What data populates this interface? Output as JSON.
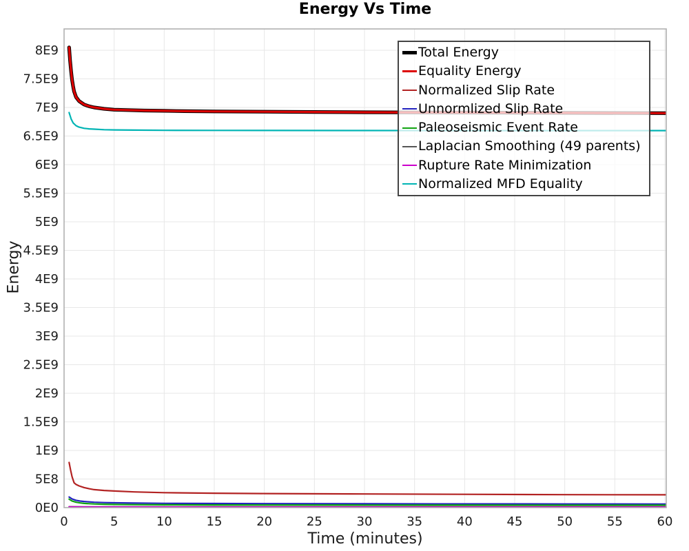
{
  "title": "Energy Vs Time",
  "colors": {
    "grid": "#e7e7e7",
    "plot_border": "#b0b0b0",
    "tick_text": "#1c1c1c",
    "legend_border": "#444444"
  },
  "chart_data": {
    "type": "line",
    "title": "Energy Vs Time",
    "xlabel": "Time (minutes)",
    "ylabel": "Energy",
    "xlim": [
      0,
      60.3
    ],
    "ylim": [
      0,
      8373000000.0
    ],
    "grid": true,
    "legend_position": "top-right",
    "x_ticks": [
      0,
      5,
      10,
      15,
      20,
      25,
      30,
      35,
      40,
      45,
      50,
      55,
      60
    ],
    "y_ticks": [
      {
        "value": 0,
        "label": "0E0"
      },
      {
        "value": 500000000.0,
        "label": "5E8"
      },
      {
        "value": 1000000000.0,
        "label": "1E9"
      },
      {
        "value": 1500000000.0,
        "label": "1.5E9"
      },
      {
        "value": 2000000000.0,
        "label": "2E9"
      },
      {
        "value": 2500000000.0,
        "label": "2.5E9"
      },
      {
        "value": 3000000000.0,
        "label": "3E9"
      },
      {
        "value": 3500000000.0,
        "label": "3.5E9"
      },
      {
        "value": 4000000000.0,
        "label": "4E9"
      },
      {
        "value": 4500000000.0,
        "label": "4.5E9"
      },
      {
        "value": 5000000000.0,
        "label": "5E9"
      },
      {
        "value": 5500000000.0,
        "label": "5.5E9"
      },
      {
        "value": 6000000000.0,
        "label": "6E9"
      },
      {
        "value": 6500000000.0,
        "label": "6.5E9"
      },
      {
        "value": 7000000000.0,
        "label": "7E9"
      },
      {
        "value": 7500000000.0,
        "label": "7.5E9"
      },
      {
        "value": 8000000000.0,
        "label": "8E9"
      }
    ],
    "series": [
      {
        "name": "Total Energy",
        "color": "#000000",
        "width": 5.2,
        "points": [
          [
            0.5,
            8050000000.0
          ],
          [
            0.6,
            7820000000.0
          ],
          [
            0.7,
            7630000000.0
          ],
          [
            0.8,
            7480000000.0
          ],
          [
            0.9,
            7370000000.0
          ],
          [
            1.0,
            7280000000.0
          ],
          [
            1.2,
            7180000000.0
          ],
          [
            1.5,
            7110000000.0
          ],
          [
            2,
            7050000000.0
          ],
          [
            2.5,
            7020000000.0
          ],
          [
            3,
            7000000000.0
          ],
          [
            4,
            6975000000.0
          ],
          [
            5,
            6960000000.0
          ],
          [
            6,
            6955000000.0
          ],
          [
            8,
            6945000000.0
          ],
          [
            10,
            6940000000.0
          ],
          [
            12,
            6935000000.0
          ],
          [
            15,
            6930000000.0
          ],
          [
            20,
            6925000000.0
          ],
          [
            25,
            6920000000.0
          ],
          [
            30,
            6915000000.0
          ],
          [
            40,
            6910000000.0
          ],
          [
            50,
            6905000000.0
          ],
          [
            60.3,
            6900000000.0
          ]
        ]
      },
      {
        "name": "Equality Energy",
        "color": "#dd0000",
        "width": 3.2,
        "points": [
          [
            0.5,
            8050000000.0
          ],
          [
            0.6,
            7820000000.0
          ],
          [
            0.7,
            7630000000.0
          ],
          [
            0.8,
            7480000000.0
          ],
          [
            0.9,
            7370000000.0
          ],
          [
            1.0,
            7280000000.0
          ],
          [
            1.2,
            7180000000.0
          ],
          [
            1.5,
            7110000000.0
          ],
          [
            2,
            7050000000.0
          ],
          [
            2.5,
            7020000000.0
          ],
          [
            3,
            7000000000.0
          ],
          [
            4,
            6975000000.0
          ],
          [
            5,
            6960000000.0
          ],
          [
            6,
            6955000000.0
          ],
          [
            8,
            6945000000.0
          ],
          [
            10,
            6940000000.0
          ],
          [
            12,
            6935000000.0
          ],
          [
            15,
            6930000000.0
          ],
          [
            20,
            6925000000.0
          ],
          [
            25,
            6920000000.0
          ],
          [
            30,
            6915000000.0
          ],
          [
            40,
            6910000000.0
          ],
          [
            50,
            6905000000.0
          ],
          [
            60.3,
            6900000000.0
          ]
        ]
      },
      {
        "name": "Normalized Slip Rate",
        "color": "#b22222",
        "width": 2.2,
        "points": [
          [
            0.5,
            790000000.0
          ],
          [
            0.65,
            660000000.0
          ],
          [
            0.8,
            540000000.0
          ],
          [
            1.0,
            435000000.0
          ],
          [
            1.2,
            405000000.0
          ],
          [
            1.5,
            380000000.0
          ],
          [
            2,
            350000000.0
          ],
          [
            2.5,
            330000000.0
          ],
          [
            3,
            315000000.0
          ],
          [
            4,
            300000000.0
          ],
          [
            5,
            290000000.0
          ],
          [
            7,
            275000000.0
          ],
          [
            10,
            262000000.0
          ],
          [
            15,
            252000000.0
          ],
          [
            20,
            246000000.0
          ],
          [
            30,
            238000000.0
          ],
          [
            40,
            232000000.0
          ],
          [
            50,
            227000000.0
          ],
          [
            60.3,
            224000000.0
          ]
        ]
      },
      {
        "name": "Unnormlized Slip Rate",
        "color": "#2222bf",
        "width": 2.2,
        "points": [
          [
            0.5,
            185000000.0
          ],
          [
            0.8,
            152000000.0
          ],
          [
            1.2,
            128000000.0
          ],
          [
            1.6,
            115000000.0
          ],
          [
            2,
            107000000.0
          ],
          [
            3,
            94000000.0
          ],
          [
            4,
            88000000.0
          ],
          [
            5,
            84000000.0
          ],
          [
            7,
            79000000.0
          ],
          [
            10,
            75000000.0
          ],
          [
            15,
            72000000.0
          ],
          [
            20,
            70000000.0
          ],
          [
            30,
            67000000.0
          ],
          [
            40,
            65000000.0
          ],
          [
            50,
            64000000.0
          ],
          [
            60.3,
            63000000.0
          ]
        ]
      },
      {
        "name": "Paleoseismic Event Rate",
        "color": "#10a310",
        "width": 2.2,
        "points": [
          [
            0.5,
            148000000.0
          ],
          [
            0.8,
            116000000.0
          ],
          [
            1.2,
            94000000.0
          ],
          [
            1.6,
            82000000.0
          ],
          [
            2,
            74000000.0
          ],
          [
            3,
            64000000.0
          ],
          [
            4,
            59000000.0
          ],
          [
            5,
            56000000.0
          ],
          [
            7,
            52000000.0
          ],
          [
            10,
            49000000.0
          ],
          [
            15,
            47000000.0
          ],
          [
            20,
            46000000.0
          ],
          [
            30,
            44000000.0
          ],
          [
            40,
            43000000.0
          ],
          [
            50,
            42500000.0
          ],
          [
            60.3,
            42000000.0
          ]
        ]
      },
      {
        "name": "Laplacian Smoothing (49 parents)",
        "color": "#555555",
        "width": 2.2,
        "points": [
          [
            0.5,
            16000000.0
          ],
          [
            2,
            14000000.0
          ],
          [
            10,
            13000000.0
          ],
          [
            60.3,
            13000000.0
          ]
        ]
      },
      {
        "name": "Rupture Rate Minimization",
        "color": "#cc00cc",
        "width": 2.2,
        "points": [
          [
            0.5,
            12000000.0
          ],
          [
            2,
            10500000.0
          ],
          [
            10,
            10000000.0
          ],
          [
            60.3,
            10000000.0
          ]
        ]
      },
      {
        "name": "Normalized MFD Equality",
        "color": "#00b4b4",
        "width": 2.2,
        "points": [
          [
            0.5,
            6910000000.0
          ],
          [
            0.7,
            6800000000.0
          ],
          [
            0.9,
            6730000000.0
          ],
          [
            1.2,
            6680000000.0
          ],
          [
            1.5,
            6655000000.0
          ],
          [
            2,
            6635000000.0
          ],
          [
            2.5,
            6625000000.0
          ],
          [
            3,
            6620000000.0
          ],
          [
            4,
            6610000000.0
          ],
          [
            5,
            6607000000.0
          ],
          [
            7,
            6603000000.0
          ],
          [
            10,
            6600000000.0
          ],
          [
            15,
            6598000000.0
          ],
          [
            20,
            6597000000.0
          ],
          [
            30,
            6596000000.0
          ],
          [
            40,
            6595000000.0
          ],
          [
            50,
            6595000000.0
          ],
          [
            60.3,
            6595000000.0
          ]
        ]
      }
    ]
  }
}
